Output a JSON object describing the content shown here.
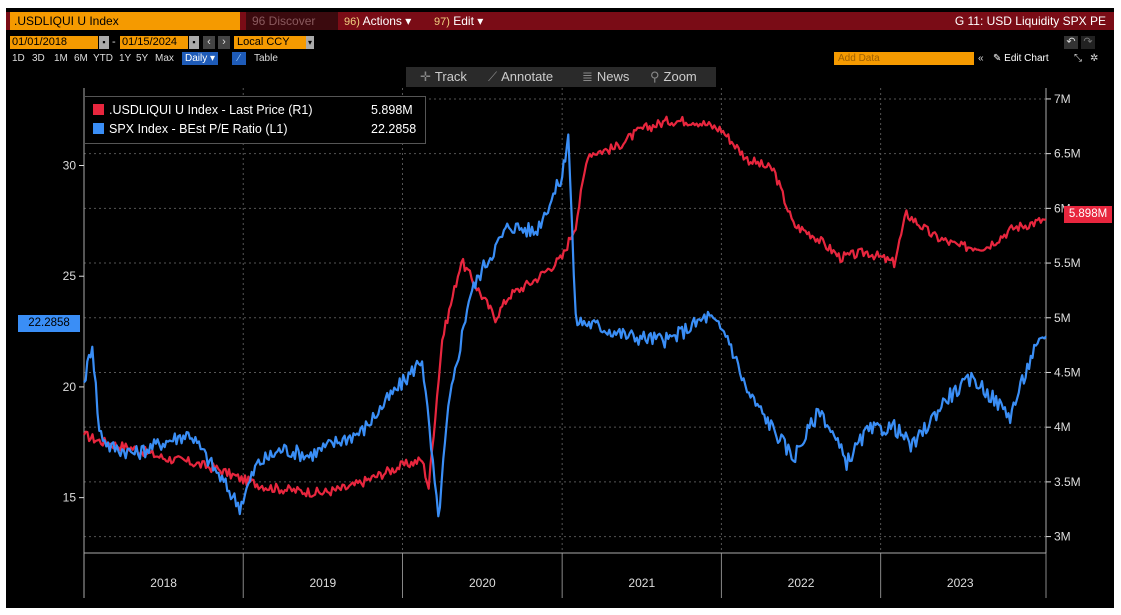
{
  "header": {
    "ticker": ".USDLIQUI U Index",
    "discover": "96 Discover",
    "actions_key": "96)",
    "actions": "Actions",
    "edit_key": "97)",
    "edit": "Edit",
    "title": "G 11: USD Liquidity SPX PE"
  },
  "controls": {
    "start_date": "01/01/2018",
    "end_date": "01/15/2024",
    "currency": "Local CCY",
    "periods": [
      "1D",
      "3D",
      "1M",
      "6M",
      "YTD",
      "1Y",
      "5Y",
      "Max"
    ],
    "frequency": "Daily",
    "table": "Table",
    "add_data_placeholder": "Add Data",
    "edit_chart": "Edit Chart"
  },
  "toolbar": {
    "track": "Track",
    "annotate": "Annotate",
    "news": "News",
    "zoom": "Zoom"
  },
  "legend": [
    {
      "label": ".USDLIQUI U Index - Last Price (R1)",
      "value": "5.898M",
      "color": "#e8263e"
    },
    {
      "label": "SPX Index - BEst P/E Ratio (L1)",
      "value": "22.2858",
      "color": "#3a8ef6"
    }
  ],
  "badges": {
    "left": "22.2858",
    "right": "5.898M"
  },
  "chart_data": {
    "type": "line",
    "x_range": [
      "2018-01-01",
      "2024-01-15"
    ],
    "x_tick_labels": [
      "2018",
      "2019",
      "2020",
      "2021",
      "2022",
      "2023"
    ],
    "left_axis": {
      "ticks": [
        15,
        20,
        25,
        30
      ],
      "range": [
        12.5,
        33.5
      ]
    },
    "right_axis": {
      "ticks": [
        "3M",
        "3.5M",
        "4M",
        "4.5M",
        "5M",
        "5.5M",
        "6M",
        "6.5M",
        "7M"
      ],
      "tick_values": [
        3.0,
        3.5,
        4.0,
        4.5,
        5.0,
        5.5,
        6.0,
        6.5,
        7.0
      ],
      "range": [
        2.85,
        7.1
      ],
      "unit": "M"
    },
    "grid": true,
    "legend_position": "top-left",
    "series": [
      {
        "name": ".USDLIQUI U Index - Last Price (R1)",
        "axis": "right",
        "color": "#e8263e",
        "last_value": 5.898,
        "points": [
          [
            "2018-01-01",
            3.93
          ],
          [
            "2018-02-01",
            3.88
          ],
          [
            "2018-03-01",
            3.85
          ],
          [
            "2018-05-01",
            3.8
          ],
          [
            "2018-07-01",
            3.72
          ],
          [
            "2018-09-01",
            3.68
          ],
          [
            "2018-11-01",
            3.62
          ],
          [
            "2019-01-01",
            3.52
          ],
          [
            "2019-03-01",
            3.45
          ],
          [
            "2019-05-01",
            3.42
          ],
          [
            "2019-07-01",
            3.4
          ],
          [
            "2019-09-01",
            3.45
          ],
          [
            "2019-10-15",
            3.52
          ],
          [
            "2019-12-01",
            3.6
          ],
          [
            "2020-01-01",
            3.65
          ],
          [
            "2020-02-15",
            3.7
          ],
          [
            "2020-03-01",
            3.45
          ],
          [
            "2020-04-01",
            4.8
          ],
          [
            "2020-05-15",
            5.52
          ],
          [
            "2020-07-01",
            5.2
          ],
          [
            "2020-08-01",
            5.0
          ],
          [
            "2020-09-01",
            5.2
          ],
          [
            "2020-11-01",
            5.35
          ],
          [
            "2021-01-01",
            5.55
          ],
          [
            "2021-02-01",
            5.85
          ],
          [
            "2021-03-01",
            6.5
          ],
          [
            "2021-05-01",
            6.55
          ],
          [
            "2021-07-01",
            6.72
          ],
          [
            "2021-09-01",
            6.8
          ],
          [
            "2021-11-01",
            6.8
          ],
          [
            "2022-01-01",
            6.72
          ],
          [
            "2022-03-01",
            6.45
          ],
          [
            "2022-05-01",
            6.35
          ],
          [
            "2022-06-15",
            5.85
          ],
          [
            "2022-08-01",
            5.75
          ],
          [
            "2022-10-01",
            5.55
          ],
          [
            "2022-12-01",
            5.6
          ],
          [
            "2023-02-01",
            5.5
          ],
          [
            "2023-03-01",
            5.95
          ],
          [
            "2023-05-01",
            5.75
          ],
          [
            "2023-07-01",
            5.65
          ],
          [
            "2023-09-01",
            5.65
          ],
          [
            "2023-11-01",
            5.82
          ],
          [
            "2024-01-15",
            5.898
          ]
        ]
      },
      {
        "name": "SPX Index - BEst P/E Ratio (L1)",
        "axis": "left",
        "color": "#3a8ef6",
        "last_value": 22.2858,
        "points": [
          [
            "2018-01-01",
            20.2
          ],
          [
            "2018-01-20",
            22.0
          ],
          [
            "2018-02-05",
            18.0
          ],
          [
            "2018-03-01",
            17.3
          ],
          [
            "2018-05-01",
            17.0
          ],
          [
            "2018-07-01",
            17.5
          ],
          [
            "2018-09-01",
            17.9
          ],
          [
            "2018-10-20",
            16.5
          ],
          [
            "2018-12-24",
            14.6
          ],
          [
            "2019-02-01",
            16.5
          ],
          [
            "2019-04-01",
            17.2
          ],
          [
            "2019-06-01",
            16.9
          ],
          [
            "2019-08-01",
            17.5
          ],
          [
            "2019-10-01",
            18.0
          ],
          [
            "2019-12-01",
            19.5
          ],
          [
            "2020-01-15",
            20.5
          ],
          [
            "2020-02-15",
            21.3
          ],
          [
            "2020-03-23",
            14.0
          ],
          [
            "2020-04-15",
            19.0
          ],
          [
            "2020-06-01",
            24.0
          ],
          [
            "2020-07-01",
            25.3
          ],
          [
            "2020-09-01",
            27.3
          ],
          [
            "2020-11-01",
            27.0
          ],
          [
            "2021-01-01",
            29.5
          ],
          [
            "2021-01-15",
            31.5
          ],
          [
            "2021-02-01",
            23.0
          ],
          [
            "2021-03-15",
            22.8
          ],
          [
            "2021-06-01",
            22.3
          ],
          [
            "2021-09-01",
            22.1
          ],
          [
            "2021-12-01",
            23.2
          ],
          [
            "2022-01-15",
            22.3
          ],
          [
            "2022-03-01",
            19.8
          ],
          [
            "2022-06-15",
            16.8
          ],
          [
            "2022-08-15",
            19.0
          ],
          [
            "2022-10-15",
            16.6
          ],
          [
            "2022-12-01",
            18.0
          ],
          [
            "2023-02-01",
            18.2
          ],
          [
            "2023-03-15",
            17.3
          ],
          [
            "2023-06-01",
            19.5
          ],
          [
            "2023-08-01",
            20.4
          ],
          [
            "2023-10-25",
            18.7
          ],
          [
            "2023-12-15",
            21.5
          ],
          [
            "2024-01-15",
            22.2858
          ]
        ]
      }
    ]
  }
}
